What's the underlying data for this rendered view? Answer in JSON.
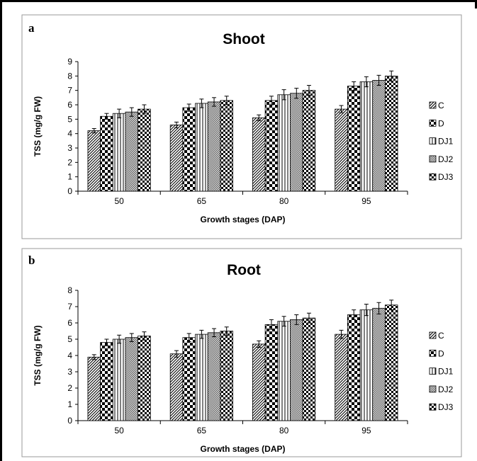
{
  "colors": {
    "border": "#000000",
    "panel_border": "#9a9a9a",
    "bar_stroke": "#000000"
  },
  "chart_data": [
    {
      "type": "bar",
      "panel_label": "a",
      "title": "Shoot",
      "xlabel": "Growth stages (DAP)",
      "ylabel": "TSS (mg/g FW)",
      "ylim": [
        0,
        9
      ],
      "yticks": [
        "0",
        "1",
        "2",
        "3",
        "4",
        "5",
        "6",
        "7",
        "8",
        "9"
      ],
      "categories": [
        "50",
        "65",
        "80",
        "95"
      ],
      "legend_position": "right",
      "grid": false,
      "series": [
        {
          "name": "C",
          "pattern": "diagonal",
          "values": [
            4.2,
            4.6,
            5.1,
            5.7
          ],
          "errors": [
            0.15,
            0.2,
            0.2,
            0.25
          ]
        },
        {
          "name": "D",
          "pattern": "checker",
          "values": [
            5.2,
            5.8,
            6.3,
            7.3
          ],
          "errors": [
            0.2,
            0.25,
            0.3,
            0.3
          ]
        },
        {
          "name": "DJ1",
          "pattern": "vlines",
          "values": [
            5.4,
            6.1,
            6.7,
            7.6
          ],
          "errors": [
            0.3,
            0.3,
            0.35,
            0.35
          ]
        },
        {
          "name": "DJ2",
          "pattern": "dotgrid",
          "values": [
            5.5,
            6.2,
            6.8,
            7.7
          ],
          "errors": [
            0.3,
            0.3,
            0.35,
            0.35
          ]
        },
        {
          "name": "DJ3",
          "pattern": "checker2",
          "values": [
            5.7,
            6.3,
            7.0,
            8.0
          ],
          "errors": [
            0.3,
            0.3,
            0.35,
            0.35
          ]
        }
      ]
    },
    {
      "type": "bar",
      "panel_label": "b",
      "title": "Root",
      "xlabel": "Growth stages (DAP)",
      "ylabel": "TSS (mg/g FW)",
      "ylim": [
        0,
        8
      ],
      "yticks": [
        "0",
        "1",
        "2",
        "3",
        "4",
        "5",
        "6",
        "7",
        "8"
      ],
      "categories": [
        "50",
        "65",
        "80",
        "95"
      ],
      "legend_position": "right",
      "grid": false,
      "series": [
        {
          "name": "C",
          "pattern": "diagonal",
          "values": [
            3.9,
            4.1,
            4.7,
            5.3
          ],
          "errors": [
            0.15,
            0.2,
            0.2,
            0.25
          ]
        },
        {
          "name": "D",
          "pattern": "checker",
          "values": [
            4.8,
            5.1,
            5.9,
            6.5
          ],
          "errors": [
            0.2,
            0.25,
            0.3,
            0.3
          ]
        },
        {
          "name": "DJ1",
          "pattern": "vlines",
          "values": [
            5.0,
            5.3,
            6.1,
            6.8
          ],
          "errors": [
            0.25,
            0.25,
            0.3,
            0.35
          ]
        },
        {
          "name": "DJ2",
          "pattern": "dotgrid",
          "values": [
            5.1,
            5.4,
            6.2,
            6.9
          ],
          "errors": [
            0.25,
            0.25,
            0.3,
            0.35
          ]
        },
        {
          "name": "DJ3",
          "pattern": "checker2",
          "values": [
            5.2,
            5.5,
            6.3,
            7.1
          ],
          "errors": [
            0.25,
            0.25,
            0.3,
            0.3
          ]
        }
      ]
    }
  ]
}
